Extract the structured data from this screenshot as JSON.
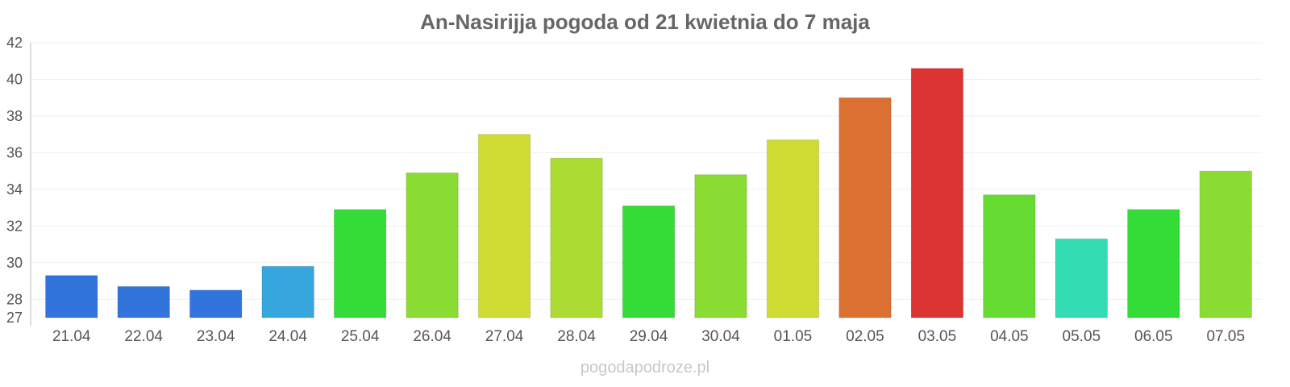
{
  "chart_data": {
    "type": "bar",
    "title": "An-Nasirijja pogoda od 21 kwietnia do 7 maja",
    "categories": [
      "21.04",
      "22.04",
      "23.04",
      "24.04",
      "25.04",
      "26.04",
      "27.04",
      "28.04",
      "29.04",
      "30.04",
      "01.05",
      "02.05",
      "03.05",
      "04.05",
      "05.05",
      "06.05",
      "07.05"
    ],
    "values": [
      29.3,
      28.7,
      28.5,
      29.8,
      32.9,
      34.9,
      37.0,
      35.7,
      33.1,
      34.8,
      36.7,
      39.0,
      40.6,
      33.7,
      31.3,
      32.9,
      35.0
    ],
    "colors": [
      "#3174dc",
      "#3174dc",
      "#3174dc",
      "#36a6dc",
      "#33dc36",
      "#8adc33",
      "#cedc33",
      "#acdc33",
      "#33dc36",
      "#8adc33",
      "#cedc33",
      "#dc7033",
      "#dc3333",
      "#66dc33",
      "#33dcb2",
      "#33dc36",
      "#8adc33"
    ],
    "ylim": [
      27,
      42
    ],
    "yticks": [
      27,
      28,
      30,
      32,
      34,
      36,
      38,
      40,
      42
    ],
    "xlabel": "",
    "ylabel": "",
    "grid": true
  },
  "watermark": "pogodapodroze.pl"
}
